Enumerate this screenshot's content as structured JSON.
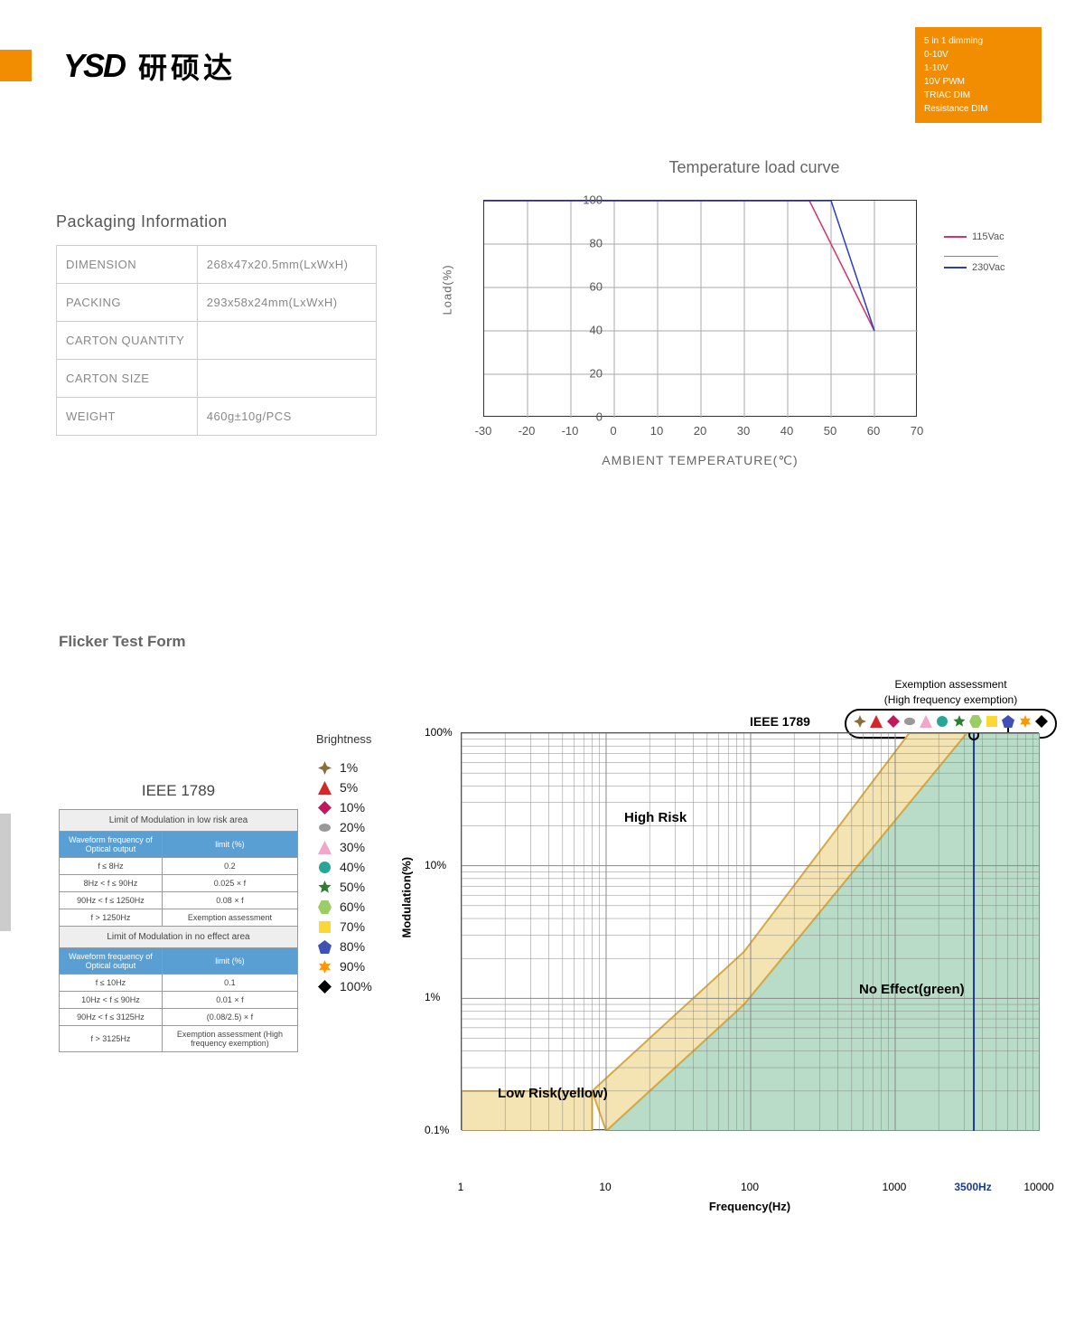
{
  "header": {
    "logo_mark": "YSD",
    "logo_cn": "研硕达",
    "orange_box_lines": [
      "5 in 1 dimming",
      "0-10V",
      "1-10V",
      "10V PWM",
      "TRIAC DIM",
      "Resistance DIM"
    ]
  },
  "packaging": {
    "title": "Packaging Information",
    "rows": [
      {
        "label": "DIMENSION",
        "value": "268x47x20.5mm(LxWxH)"
      },
      {
        "label": "PACKING",
        "value": "293x58x24mm(LxWxH)"
      },
      {
        "label": "CARTON QUANTITY",
        "value": ""
      },
      {
        "label": "CARTON SIZE",
        "value": ""
      },
      {
        "label": "WEIGHT",
        "value": "460g±10g/PCS"
      }
    ]
  },
  "temp_chart": {
    "title": "Temperature load curve",
    "ylabel": "Load(%)",
    "xlabel": "AMBIENT TEMPERATURE(℃)",
    "x_ticks": [
      -30,
      -20,
      -10,
      0,
      10,
      20,
      30,
      40,
      50,
      60,
      70
    ],
    "y_ticks": [
      0,
      20,
      40,
      60,
      80,
      100
    ],
    "xlim": [
      -30,
      70
    ],
    "ylim": [
      0,
      100
    ],
    "grid_color": "#aaaaaa",
    "series": [
      {
        "name": "115Vac",
        "color": "#d6336c",
        "points": [
          [
            -30,
            100
          ],
          [
            45,
            100
          ],
          [
            60,
            40
          ]
        ]
      },
      {
        "name": "230Vac",
        "color": "#2d3dbf",
        "points": [
          [
            -30,
            100
          ],
          [
            50,
            100
          ],
          [
            60,
            40
          ]
        ]
      }
    ]
  },
  "flicker": {
    "title": "Flicker Test Form",
    "ieee_title": "IEEE 1789",
    "ieee_table": {
      "section1": {
        "header": "Limit of Modulation in low risk area",
        "col_headers": [
          "Waveform frequency of Optical output",
          "limit (%)"
        ],
        "rows": [
          [
            "f ≤ 8Hz",
            "0.2"
          ],
          [
            "8Hz < f ≤ 90Hz",
            "0.025 × f"
          ],
          [
            "90Hz < f ≤ 1250Hz",
            "0.08 × f"
          ],
          [
            "f > 1250Hz",
            "Exemption assessment"
          ]
        ]
      },
      "section2": {
        "header": "Limit of Modulation in no effect area",
        "col_headers": [
          "Waveform frequency of Optical output",
          "limit (%)"
        ],
        "rows": [
          [
            "f ≤ 10Hz",
            "0.1"
          ],
          [
            "10Hz < f ≤ 90Hz",
            "0.01 × f"
          ],
          [
            "90Hz < f ≤ 3125Hz",
            "(0.08/2.5) × f"
          ],
          [
            "f > 3125Hz",
            "Exemption assessment (High frequency exemption)"
          ]
        ]
      }
    },
    "brightness": {
      "title": "Brightness",
      "items": [
        {
          "pct": "1%",
          "shape": "star4",
          "color": "#8a6d3b"
        },
        {
          "pct": "5%",
          "shape": "triangle",
          "color": "#d62728"
        },
        {
          "pct": "10%",
          "shape": "diamond",
          "color": "#c2185b"
        },
        {
          "pct": "20%",
          "shape": "ellipse",
          "color": "#999999"
        },
        {
          "pct": "30%",
          "shape": "triangle",
          "color": "#f4a6c8"
        },
        {
          "pct": "40%",
          "shape": "circle",
          "color": "#26a69a"
        },
        {
          "pct": "50%",
          "shape": "star5",
          "color": "#2e7d32"
        },
        {
          "pct": "60%",
          "shape": "hexagon",
          "color": "#9ccc65"
        },
        {
          "pct": "70%",
          "shape": "square",
          "color": "#fdd835"
        },
        {
          "pct": "80%",
          "shape": "pentagon",
          "color": "#3f51b5"
        },
        {
          "pct": "90%",
          "shape": "star6",
          "color": "#ff9800"
        },
        {
          "pct": "100%",
          "shape": "diamond",
          "color": "#000000"
        }
      ]
    },
    "chart": {
      "ieee_label": "IEEE 1789",
      "exemption_title": "Exemption assessment",
      "exemption_sub": "(High frequency exemption)",
      "ylabel": "Modulation(%)",
      "xlabel": "Frequency(Hz)",
      "x_ticks_labels": [
        "1",
        "10",
        "100",
        "1000",
        "10000"
      ],
      "x_ticks_log": [
        0,
        1,
        2,
        3,
        4
      ],
      "y_ticks_labels": [
        "0.1%",
        "1%",
        "10%",
        "100%"
      ],
      "y_ticks_log": [
        -1,
        0,
        1,
        2
      ],
      "xscale": "log",
      "yscale": "log",
      "marker_freq": 3500,
      "marker_label": "3500Hz",
      "marker_color": "#1a3a8f",
      "high_risk_label": "High Risk",
      "low_risk_label": "Low Risk(yellow)",
      "no_effect_label": "No Effect(green)",
      "low_risk_color": "#f4e4b4",
      "low_risk_border": "#d4a947",
      "no_effect_color": "#b8dcc8",
      "no_effect_border": "#5fa97a",
      "grid_color": "#888888",
      "low_risk_polygon": [
        [
          8,
          0.2
        ],
        [
          90,
          2.25
        ],
        [
          1250,
          100
        ],
        [
          3125,
          100
        ],
        [
          90,
          0.9
        ],
        [
          10,
          0.1
        ],
        [
          8,
          0.2
        ]
      ],
      "no_effect_polygon": [
        [
          10,
          0.1
        ],
        [
          90,
          0.9
        ],
        [
          3125,
          100
        ],
        [
          10000,
          100
        ],
        [
          10000,
          0.1
        ],
        [
          10,
          0.1
        ]
      ]
    }
  }
}
